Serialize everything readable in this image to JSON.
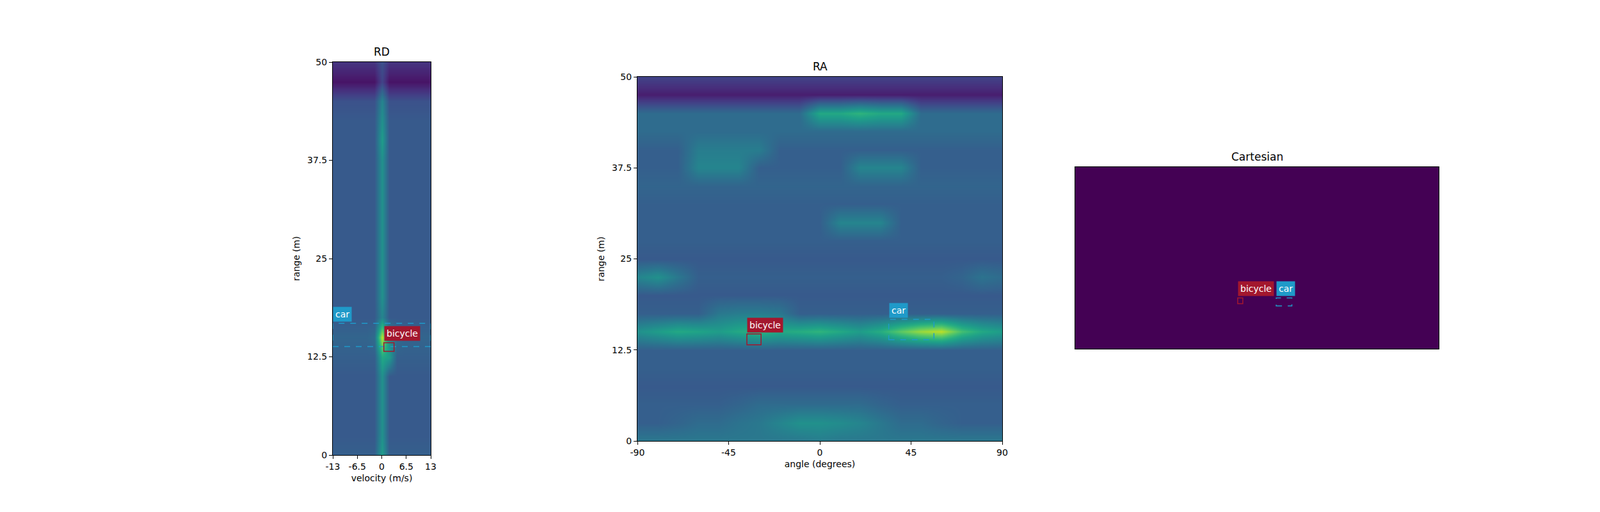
{
  "chart_data": [
    {
      "type": "heatmap",
      "title": "RD",
      "x_label": "velocity (m/s)",
      "y_label": "range (m)",
      "xlim": [
        -13,
        13
      ],
      "ylim": [
        0,
        50
      ],
      "xticks": [
        -13,
        -6.5,
        0,
        6.5,
        13
      ],
      "yticks": [
        0,
        12.5,
        25,
        37.5,
        50
      ],
      "zlim": [
        0,
        1
      ],
      "x": [
        -12,
        -10,
        -8,
        -6,
        -4,
        -2,
        0,
        2,
        4,
        6,
        8,
        10,
        12
      ],
      "y": [
        0,
        2.5,
        5,
        7.5,
        10,
        12.5,
        15,
        17.5,
        20,
        22.5,
        25,
        27.5,
        30,
        32.5,
        35,
        37.5,
        40,
        42.5,
        45,
        47.5,
        50
      ],
      "z": [
        [
          0.3,
          0.3,
          0.3,
          0.3,
          0.3,
          0.3,
          0.55,
          0.3,
          0.3,
          0.3,
          0.3,
          0.3,
          0.3
        ],
        [
          0.28,
          0.28,
          0.28,
          0.28,
          0.28,
          0.28,
          0.5,
          0.28,
          0.28,
          0.28,
          0.28,
          0.28,
          0.28
        ],
        [
          0.28,
          0.28,
          0.28,
          0.28,
          0.28,
          0.28,
          0.5,
          0.28,
          0.28,
          0.28,
          0.28,
          0.28,
          0.28
        ],
        [
          0.28,
          0.28,
          0.28,
          0.28,
          0.28,
          0.28,
          0.5,
          0.28,
          0.28,
          0.28,
          0.28,
          0.28,
          0.28
        ],
        [
          0.28,
          0.28,
          0.28,
          0.28,
          0.28,
          0.28,
          0.5,
          0.28,
          0.28,
          0.28,
          0.28,
          0.28,
          0.28
        ],
        [
          0.3,
          0.3,
          0.3,
          0.3,
          0.3,
          0.3,
          0.6,
          0.55,
          0.3,
          0.3,
          0.3,
          0.3,
          0.3
        ],
        [
          0.32,
          0.32,
          0.32,
          0.32,
          0.32,
          0.35,
          0.9,
          0.5,
          0.35,
          0.32,
          0.32,
          0.32,
          0.32
        ],
        [
          0.28,
          0.28,
          0.28,
          0.28,
          0.28,
          0.28,
          0.45,
          0.28,
          0.28,
          0.28,
          0.28,
          0.28,
          0.28
        ],
        [
          0.28,
          0.28,
          0.28,
          0.28,
          0.28,
          0.28,
          0.5,
          0.28,
          0.28,
          0.28,
          0.28,
          0.28,
          0.28
        ],
        [
          0.28,
          0.28,
          0.28,
          0.28,
          0.28,
          0.28,
          0.5,
          0.28,
          0.28,
          0.28,
          0.28,
          0.28,
          0.28
        ],
        [
          0.28,
          0.28,
          0.28,
          0.28,
          0.28,
          0.28,
          0.5,
          0.28,
          0.28,
          0.28,
          0.28,
          0.28,
          0.28
        ],
        [
          0.28,
          0.28,
          0.28,
          0.28,
          0.28,
          0.28,
          0.5,
          0.28,
          0.28,
          0.28,
          0.28,
          0.28,
          0.28
        ],
        [
          0.28,
          0.28,
          0.28,
          0.28,
          0.28,
          0.28,
          0.5,
          0.28,
          0.28,
          0.28,
          0.28,
          0.28,
          0.28
        ],
        [
          0.28,
          0.28,
          0.28,
          0.28,
          0.28,
          0.28,
          0.5,
          0.28,
          0.28,
          0.28,
          0.28,
          0.28,
          0.28
        ],
        [
          0.28,
          0.28,
          0.28,
          0.28,
          0.28,
          0.28,
          0.5,
          0.28,
          0.28,
          0.28,
          0.28,
          0.28,
          0.28
        ],
        [
          0.28,
          0.28,
          0.28,
          0.28,
          0.28,
          0.28,
          0.5,
          0.28,
          0.28,
          0.28,
          0.28,
          0.28,
          0.28
        ],
        [
          0.28,
          0.28,
          0.28,
          0.28,
          0.28,
          0.28,
          0.55,
          0.28,
          0.28,
          0.28,
          0.28,
          0.28,
          0.28
        ],
        [
          0.28,
          0.28,
          0.28,
          0.28,
          0.28,
          0.28,
          0.5,
          0.28,
          0.28,
          0.28,
          0.28,
          0.28,
          0.28
        ],
        [
          0.25,
          0.25,
          0.25,
          0.25,
          0.25,
          0.25,
          0.45,
          0.25,
          0.25,
          0.25,
          0.25,
          0.25,
          0.25
        ],
        [
          0.05,
          0.05,
          0.05,
          0.05,
          0.05,
          0.05,
          0.2,
          0.05,
          0.05,
          0.05,
          0.05,
          0.05,
          0.05
        ],
        [
          0.15,
          0.15,
          0.15,
          0.15,
          0.15,
          0.15,
          0.25,
          0.15,
          0.15,
          0.15,
          0.15,
          0.15,
          0.15
        ]
      ],
      "boxes": [
        {
          "label": "car",
          "color": "#1f9ac9",
          "line_style": "dash",
          "x": [
            -13,
            13
          ],
          "y": [
            13.8,
            16.75
          ]
        },
        {
          "label": "bicycle",
          "color": "#a3172e",
          "line_style": "solid",
          "x": [
            0.55,
            3.26
          ],
          "y": [
            13.2,
            14.3
          ]
        }
      ]
    },
    {
      "type": "heatmap",
      "title": "RA",
      "x_label": "angle (degrees)",
      "y_label": "range (m)",
      "xlim": [
        -90,
        90
      ],
      "ylim": [
        0,
        50
      ],
      "xticks": [
        -90,
        -45,
        0,
        45,
        90
      ],
      "yticks": [
        0,
        12.5,
        25,
        37.5,
        50
      ],
      "zlim": [
        0,
        1
      ],
      "x": [
        -90,
        -80,
        -70,
        -60,
        -50,
        -40,
        -30,
        -20,
        -10,
        0,
        10,
        20,
        30,
        40,
        50,
        60,
        70,
        80,
        90
      ],
      "y": [
        0,
        2.5,
        5,
        7.5,
        10,
        12.5,
        15,
        17.5,
        20,
        22.5,
        25,
        27.5,
        30,
        32.5,
        35,
        37.5,
        40,
        42.5,
        45,
        47.5,
        50
      ],
      "z": [
        [
          0.4,
          0.4,
          0.4,
          0.4,
          0.4,
          0.4,
          0.4,
          0.4,
          0.4,
          0.42,
          0.4,
          0.4,
          0.4,
          0.4,
          0.4,
          0.4,
          0.4,
          0.4,
          0.4
        ],
        [
          0.3,
          0.3,
          0.32,
          0.35,
          0.35,
          0.38,
          0.4,
          0.45,
          0.5,
          0.5,
          0.48,
          0.45,
          0.4,
          0.35,
          0.35,
          0.32,
          0.3,
          0.3,
          0.3
        ],
        [
          0.3,
          0.3,
          0.3,
          0.3,
          0.3,
          0.32,
          0.35,
          0.35,
          0.35,
          0.35,
          0.35,
          0.35,
          0.32,
          0.3,
          0.3,
          0.3,
          0.3,
          0.3,
          0.3
        ],
        [
          0.28,
          0.28,
          0.28,
          0.28,
          0.28,
          0.28,
          0.28,
          0.28,
          0.28,
          0.28,
          0.28,
          0.28,
          0.28,
          0.28,
          0.28,
          0.28,
          0.28,
          0.28,
          0.28
        ],
        [
          0.3,
          0.3,
          0.3,
          0.3,
          0.3,
          0.3,
          0.3,
          0.3,
          0.3,
          0.3,
          0.3,
          0.3,
          0.3,
          0.3,
          0.3,
          0.3,
          0.3,
          0.3,
          0.3
        ],
        [
          0.3,
          0.3,
          0.3,
          0.3,
          0.3,
          0.3,
          0.3,
          0.3,
          0.3,
          0.3,
          0.3,
          0.3,
          0.3,
          0.3,
          0.3,
          0.3,
          0.3,
          0.3,
          0.3
        ],
        [
          0.5,
          0.55,
          0.6,
          0.58,
          0.55,
          0.6,
          0.65,
          0.6,
          0.62,
          0.65,
          0.6,
          0.55,
          0.62,
          0.75,
          0.85,
          0.9,
          0.7,
          0.6,
          0.55
        ],
        [
          0.3,
          0.3,
          0.3,
          0.3,
          0.4,
          0.42,
          0.42,
          0.4,
          0.3,
          0.3,
          0.3,
          0.3,
          0.3,
          0.3,
          0.3,
          0.3,
          0.3,
          0.3,
          0.3
        ],
        [
          0.28,
          0.28,
          0.28,
          0.28,
          0.28,
          0.28,
          0.28,
          0.28,
          0.28,
          0.28,
          0.28,
          0.28,
          0.28,
          0.28,
          0.28,
          0.28,
          0.28,
          0.28,
          0.28
        ],
        [
          0.45,
          0.5,
          0.4,
          0.3,
          0.3,
          0.3,
          0.3,
          0.3,
          0.3,
          0.3,
          0.3,
          0.3,
          0.3,
          0.3,
          0.3,
          0.3,
          0.32,
          0.38,
          0.35
        ],
        [
          0.28,
          0.28,
          0.28,
          0.28,
          0.28,
          0.28,
          0.28,
          0.28,
          0.28,
          0.28,
          0.28,
          0.28,
          0.28,
          0.28,
          0.28,
          0.28,
          0.28,
          0.28,
          0.28
        ],
        [
          0.3,
          0.3,
          0.3,
          0.3,
          0.3,
          0.3,
          0.3,
          0.3,
          0.3,
          0.3,
          0.3,
          0.3,
          0.3,
          0.3,
          0.3,
          0.3,
          0.3,
          0.3,
          0.3
        ],
        [
          0.3,
          0.3,
          0.3,
          0.3,
          0.3,
          0.3,
          0.3,
          0.3,
          0.3,
          0.3,
          0.45,
          0.45,
          0.45,
          0.3,
          0.3,
          0.3,
          0.3,
          0.3,
          0.3
        ],
        [
          0.3,
          0.3,
          0.3,
          0.3,
          0.3,
          0.3,
          0.3,
          0.3,
          0.3,
          0.3,
          0.3,
          0.3,
          0.3,
          0.3,
          0.3,
          0.3,
          0.3,
          0.3,
          0.3
        ],
        [
          0.32,
          0.32,
          0.32,
          0.32,
          0.32,
          0.32,
          0.32,
          0.32,
          0.32,
          0.32,
          0.32,
          0.32,
          0.32,
          0.32,
          0.32,
          0.32,
          0.32,
          0.32,
          0.32
        ],
        [
          0.3,
          0.3,
          0.3,
          0.45,
          0.45,
          0.45,
          0.3,
          0.3,
          0.3,
          0.3,
          0.3,
          0.45,
          0.45,
          0.45,
          0.3,
          0.3,
          0.3,
          0.3,
          0.3
        ],
        [
          0.3,
          0.3,
          0.3,
          0.42,
          0.42,
          0.42,
          0.42,
          0.3,
          0.3,
          0.3,
          0.3,
          0.3,
          0.3,
          0.3,
          0.3,
          0.3,
          0.3,
          0.3,
          0.3
        ],
        [
          0.35,
          0.35,
          0.35,
          0.35,
          0.35,
          0.35,
          0.35,
          0.35,
          0.35,
          0.35,
          0.35,
          0.35,
          0.35,
          0.35,
          0.35,
          0.35,
          0.35,
          0.35,
          0.35
        ],
        [
          0.35,
          0.35,
          0.35,
          0.35,
          0.35,
          0.35,
          0.35,
          0.35,
          0.35,
          0.6,
          0.6,
          0.65,
          0.6,
          0.6,
          0.35,
          0.35,
          0.35,
          0.35,
          0.35
        ],
        [
          0.08,
          0.08,
          0.08,
          0.08,
          0.08,
          0.08,
          0.08,
          0.08,
          0.08,
          0.08,
          0.08,
          0.08,
          0.08,
          0.08,
          0.08,
          0.08,
          0.08,
          0.08,
          0.08
        ],
        [
          0.2,
          0.2,
          0.2,
          0.2,
          0.2,
          0.2,
          0.2,
          0.2,
          0.2,
          0.2,
          0.2,
          0.2,
          0.2,
          0.2,
          0.2,
          0.2,
          0.2,
          0.2,
          0.2
        ]
      ],
      "boxes": [
        {
          "label": "bicycle",
          "color": "#a3172e",
          "line_style": "solid",
          "x": [
            -36,
            -29
          ],
          "y": [
            13.2,
            14.7
          ]
        },
        {
          "label": "car",
          "color": "#1f9ac9",
          "line_style": "dash",
          "x": [
            34,
            56.3
          ],
          "y": [
            13.9,
            16.7
          ]
        }
      ]
    },
    {
      "type": "boxes",
      "title": "Cartesian",
      "color": "#440154",
      "tick_labels": false,
      "xlim": [
        -50,
        50
      ],
      "ylim": [
        0,
        50
      ],
      "boxes": [
        {
          "label": "bicycle",
          "color": "#a3172e",
          "line_style": "solid",
          "x": [
            -5.3,
            -3.9
          ],
          "y": [
            12.4,
            14.0
          ]
        },
        {
          "label": "car",
          "color": "#1f9ac9",
          "line_style": "dash",
          "x": [
            5.3,
            9.6
          ],
          "y": [
            11.8,
            14.0
          ]
        }
      ]
    }
  ]
}
